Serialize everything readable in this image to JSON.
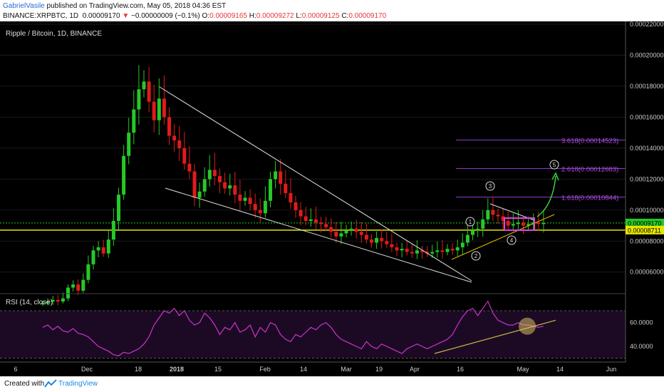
{
  "header": {
    "author": "GabrielVasile",
    "published": " published on TradingView.com, May 05, 2018 04:36 EST",
    "symbol": "BINANCE:XRPBTC, 1D",
    "price": "0.00009170",
    "arrow": "▼",
    "change": "−0.00000009 (−0.1%)",
    "o_label": "O:",
    "o_value": "0.00009165",
    "h_label": "H:",
    "h_value": "0.00009272",
    "l_label": "L:",
    "l_value": "0.00009125",
    "c_label": "C:",
    "c_value": "0.00009170"
  },
  "footer": {
    "created": "Created with",
    "brand": "TradingView"
  },
  "colors": {
    "background": "#000000",
    "up": "#26c926",
    "down": "#e01b1b",
    "trendline": "#dddddd",
    "support": "#e6e600",
    "fib": "#8c3bd1",
    "rsi": "#cc33cc",
    "rsi_trend": "#c8b84a",
    "arrow": "#3cd13c"
  },
  "chart_data": [
    {
      "type": "candlestick",
      "title": "Ripple / Bitcoin, 1D, BINANCE",
      "y_ticks": [
        "0.00022000",
        "0.00020000",
        "0.00018000",
        "0.00016000",
        "0.00014000",
        "0.00012000",
        "0.00010000",
        "0.00008000",
        "0.00006000"
      ],
      "ylim": [
        4.7e-05,
        0.00022
      ],
      "x_ticks": [
        "6",
        "Dec",
        "18",
        "2018",
        "15",
        "Feb",
        "14",
        "Mar",
        "19",
        "Apr",
        "16",
        "May",
        "14",
        "Jun"
      ],
      "price_labels": [
        {
          "value": 9.17e-05,
          "text": "0.00009170",
          "color": "#26c926"
        },
        {
          "value": 8.711e-05,
          "text": "0.00008711",
          "color": "#e6e600"
        }
      ],
      "fib_levels": [
        {
          "value": 0.00010844,
          "text": "1.618(0.00010844)"
        },
        {
          "value": 0.00012683,
          "text": "2.618(0.00012683)"
        },
        {
          "value": 0.00014523,
          "text": "3.618(0.00014523)"
        }
      ],
      "wave_labels": [
        "1",
        "2",
        "3",
        "4",
        "5"
      ],
      "closes": [
        4e-05,
        4.1e-05,
        4.2e-05,
        4.1e-05,
        4.3e-05,
        5e-05,
        5.2e-05,
        4.8e-05,
        5.5e-05,
        6.5e-05,
        7.4e-05,
        7.6e-05,
        7.2e-05,
        8.1e-05,
        9.3e-05,
        0.00011,
        0.000135,
        0.00015,
        0.000165,
        0.000178,
        0.000183,
        0.00017,
        0.000158,
        0.000172,
        0.00016,
        0.000148,
        0.000145,
        0.00014,
        0.00013,
        0.000125,
        0.000108,
        0.000112,
        0.00012,
        0.000126,
        0.000122,
        0.000118,
        0.000114,
        0.000116,
        0.00011,
        0.000106,
        0.000108,
        0.000104,
        0.0001,
        9.8e-05,
        0.000106,
        0.00012,
        0.000125,
        0.000117,
        0.000111,
        0.000105,
        0.0001,
        9.6e-05,
        9.3e-05,
        9.4e-05,
        9.2e-05,
        9.1e-05,
        8.9e-05,
        8.6e-05,
        8.3e-05,
        8.5e-05,
        8.7e-05,
        8.8e-05,
        8.6e-05,
        8.4e-05,
        8.1e-05,
        7.9e-05,
        8.2e-05,
        8e-05,
        7.8e-05,
        7.6e-05,
        7.4e-05,
        7.5e-05,
        7.3e-05,
        7.2e-05,
        7.4e-05,
        7.3e-05,
        7.2e-05,
        7.3e-05,
        7.4e-05,
        7.3e-05,
        7.5e-05,
        7.4e-05,
        7.6e-05,
        7.9e-05,
        8.4e-05,
        8.7e-05,
        8.8e-05,
        9.4e-05,
        0.0001,
        9.7e-05,
        9.6e-05,
        9.3e-05,
        9e-05,
        9.1e-05,
        9.2e-05,
        9e-05,
        9.1e-05,
        9.2e-05,
        9.1e-05,
        9.17e-05
      ]
    },
    {
      "type": "line",
      "title": "RSI (14, close)",
      "y_ticks": [
        "60.0000",
        "40.0000"
      ],
      "ylim": [
        28,
        82
      ],
      "values": [
        56,
        58,
        54,
        57,
        53,
        52,
        55,
        51,
        50,
        48,
        44,
        40,
        38,
        36,
        33,
        32,
        35,
        34,
        36,
        38,
        42,
        48,
        58,
        64,
        70,
        68,
        72,
        66,
        70,
        62,
        58,
        60,
        68,
        64,
        58,
        50,
        56,
        54,
        60,
        52,
        54,
        58,
        48,
        56,
        52,
        60,
        58,
        50,
        46,
        44,
        50,
        48,
        52,
        56,
        54,
        58,
        60,
        56,
        50,
        46,
        44,
        42,
        40,
        38,
        44,
        40,
        38,
        42,
        40,
        38,
        36,
        34,
        38,
        40,
        42,
        40,
        38,
        40,
        42,
        44,
        46,
        50,
        58,
        65,
        70,
        72,
        66,
        72,
        78,
        68,
        62,
        60,
        58,
        58,
        60,
        58,
        58,
        57,
        56,
        57
      ]
    }
  ]
}
